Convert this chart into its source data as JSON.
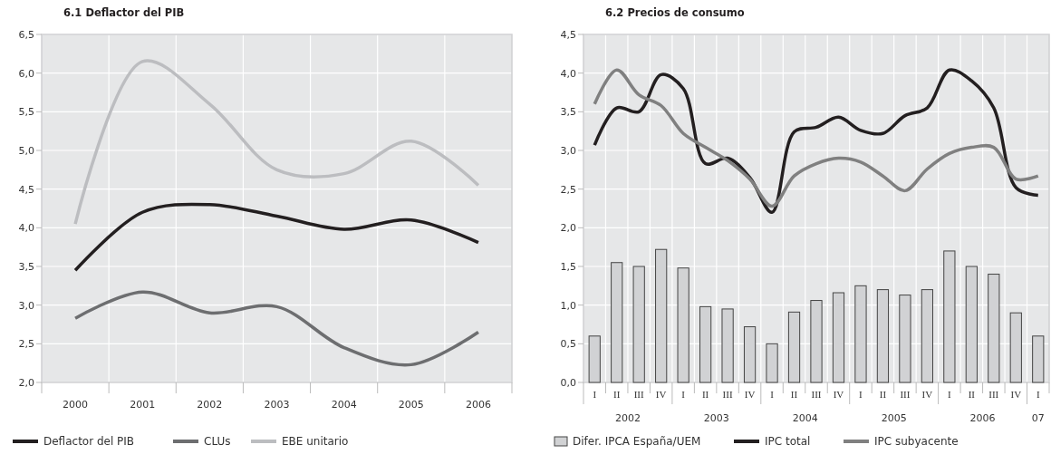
{
  "chart_data": [
    {
      "type": "line",
      "title": "6.1 Deflactor del PIB",
      "categories": [
        "2000",
        "2001",
        "2002",
        "2003",
        "2004",
        "2005",
        "2006"
      ],
      "series": [
        {
          "name": "Deflactor del PIB",
          "color": "#231f20",
          "values": [
            3.45,
            4.2,
            4.3,
            4.15,
            3.98,
            4.1,
            3.81
          ]
        },
        {
          "name": "CLUs",
          "color": "#6d6e70",
          "values": [
            2.83,
            3.17,
            2.9,
            2.98,
            2.45,
            2.23,
            2.65
          ]
        },
        {
          "name": "EBE unitario",
          "color": "#bcbdc0",
          "values": [
            4.05,
            6.15,
            5.6,
            4.75,
            4.7,
            5.12,
            4.55
          ]
        }
      ],
      "ylim": [
        2.0,
        6.5
      ],
      "yticks": [
        {
          "value": 2.0,
          "label": "2,0"
        },
        {
          "value": 2.5,
          "label": "2,5"
        },
        {
          "value": 3.0,
          "label": "3,0"
        },
        {
          "value": 3.5,
          "label": "3,5"
        },
        {
          "value": 4.0,
          "label": "4,0"
        },
        {
          "value": 4.5,
          "label": "4,5"
        },
        {
          "value": 5.0,
          "label": "5,0"
        },
        {
          "value": 5.5,
          "label": "5,5"
        },
        {
          "value": 6.0,
          "label": "6,0"
        },
        {
          "value": 6.5,
          "label": "6,5"
        }
      ],
      "grid": true,
      "legend": "bottom"
    },
    {
      "type": "line",
      "title": "6.2 Precios de consumo",
      "categories": [
        "I",
        "II",
        "III",
        "IV",
        "I",
        "II",
        "III",
        "IV",
        "I",
        "II",
        "III",
        "IV",
        "I",
        "II",
        "III",
        "IV",
        "I",
        "II",
        "III",
        "IV",
        "I"
      ],
      "series": [
        {
          "name": "Difer. IPCA España/UEM",
          "type": "bar",
          "color": "#d1d2d4",
          "values": [
            0.6,
            1.55,
            1.5,
            1.72,
            1.48,
            0.98,
            0.95,
            0.72,
            0.5,
            0.91,
            1.06,
            1.16,
            1.25,
            1.2,
            1.13,
            1.2,
            1.7,
            1.5,
            1.4,
            0.9,
            0.6
          ]
        },
        {
          "name": "IPC total",
          "color": "#231f20",
          "values": [
            3.07,
            3.55,
            3.5,
            3.98,
            3.8,
            2.83,
            2.9,
            2.65,
            2.2,
            3.24,
            3.3,
            3.43,
            3.26,
            3.22,
            3.45,
            3.55,
            4.04,
            3.9,
            3.55,
            2.52,
            2.42
          ]
        },
        {
          "name": "IPC subyacente",
          "color": "#808080",
          "values": [
            3.6,
            4.04,
            3.72,
            3.58,
            3.22,
            3.04,
            2.87,
            2.63,
            2.28,
            2.67,
            2.83,
            2.9,
            2.85,
            2.67,
            2.48,
            2.76,
            2.96,
            3.04,
            3.04,
            2.63,
            2.67
          ]
        }
      ],
      "annotations": [
        "2002",
        "2003",
        "2004",
        "2005",
        "2006",
        "07"
      ],
      "ylim": [
        0.0,
        4.5
      ],
      "yticks": [
        {
          "value": 0.0,
          "label": "0,0"
        },
        {
          "value": 0.5,
          "label": "0,5"
        },
        {
          "value": 1.0,
          "label": "1,0"
        },
        {
          "value": 1.5,
          "label": "1,5"
        },
        {
          "value": 2.0,
          "label": "2,0"
        },
        {
          "value": 2.5,
          "label": "2,5"
        },
        {
          "value": 3.0,
          "label": "3,0"
        },
        {
          "value": 3.5,
          "label": "3,5"
        },
        {
          "value": 4.0,
          "label": "4,0"
        },
        {
          "value": 4.5,
          "label": "4,5"
        }
      ],
      "grid": true,
      "legend": "bottom"
    }
  ]
}
